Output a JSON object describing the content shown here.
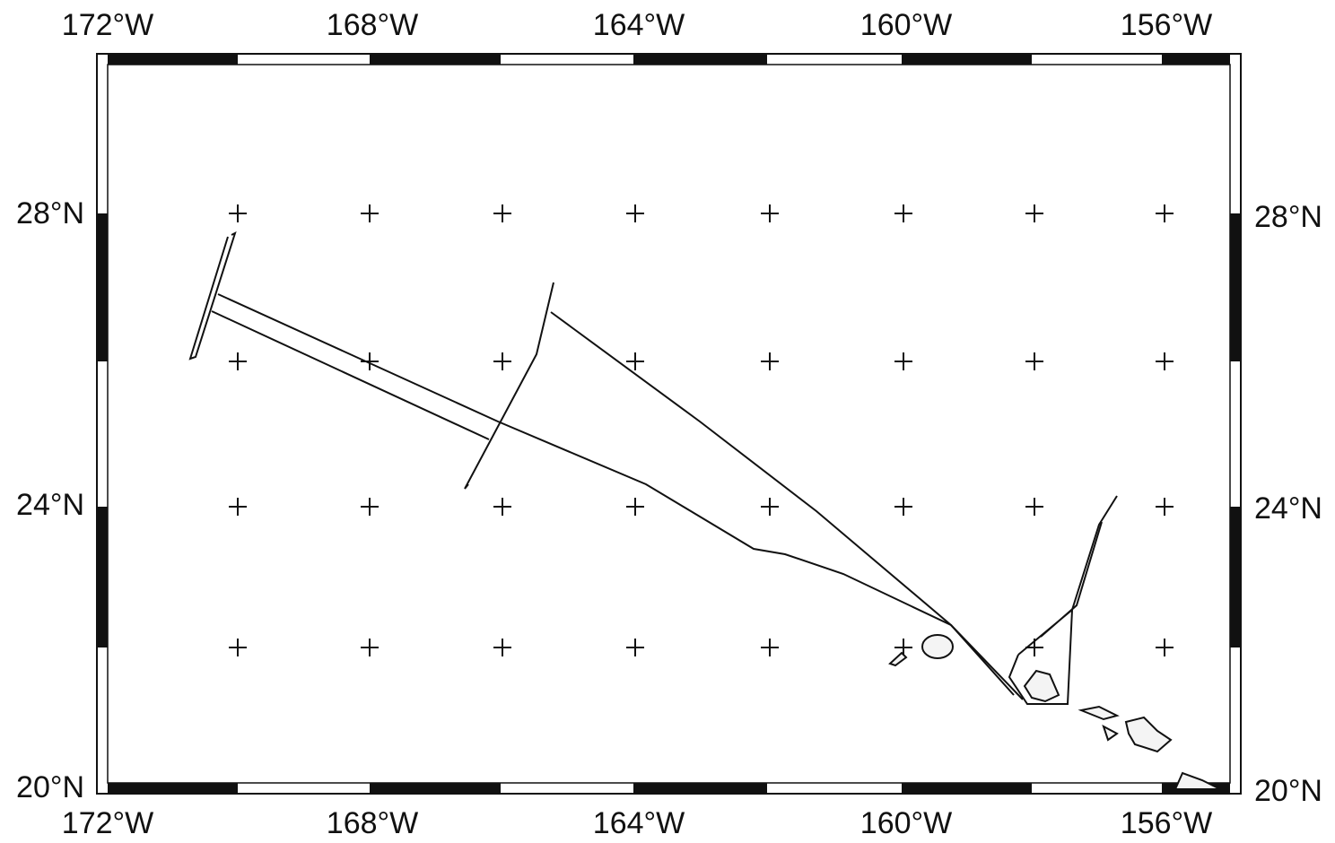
{
  "lon_labels": [
    "172°W",
    "168°W",
    "164°W",
    "160°W",
    "156°W"
  ],
  "lat_labels": [
    "28°N",
    "24°N",
    "20°N"
  ]
}
